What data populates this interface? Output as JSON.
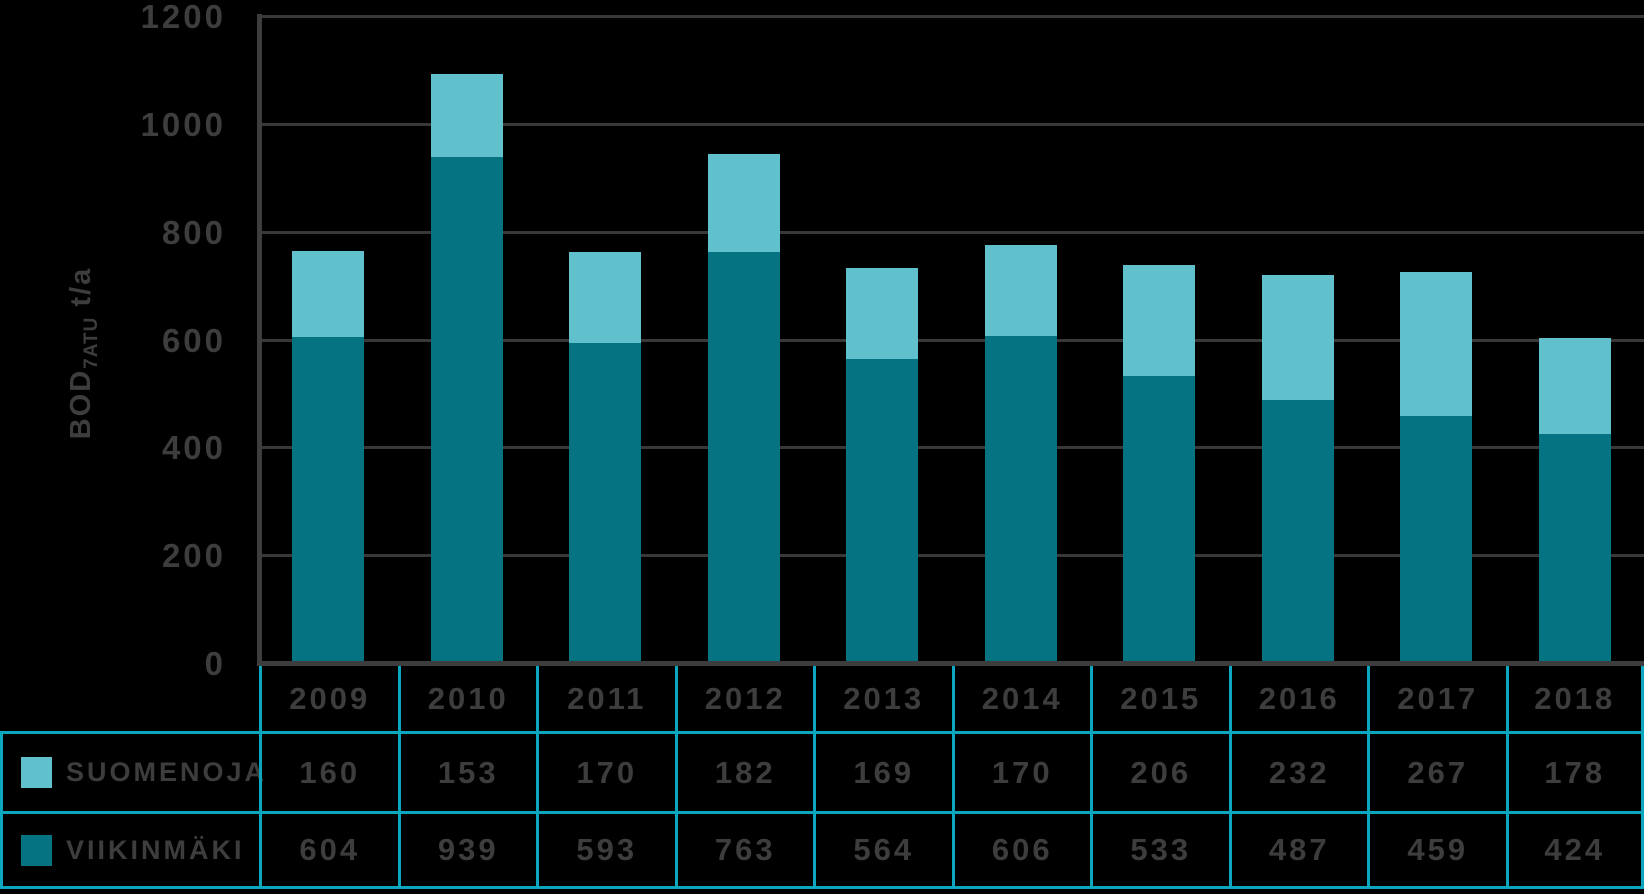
{
  "colors": {
    "background": "#000000",
    "suomenoja": "#60c1cc",
    "viikinmaki": "#057381",
    "table_border": "#0ba7be",
    "grid": "#383838",
    "axis": "#3d3d3d",
    "text": "#3d3d3d"
  },
  "y_axis": {
    "title_prefix": "BOD",
    "title_subscript": "7ATU",
    "title_suffix": " t/a",
    "tick_labels": [
      "1200",
      "1000",
      "800",
      "600",
      "400",
      "200",
      "0"
    ],
    "tick_values": [
      1200,
      1000,
      800,
      600,
      400,
      200,
      0
    ]
  },
  "chart_data": {
    "type": "bar",
    "stacked": true,
    "title": "",
    "xlabel": "",
    "ylabel": "BOD7ATU t/a",
    "ylim": [
      0,
      1200
    ],
    "grid": true,
    "legend_position": "table-rows-below-chart",
    "categories": [
      "2009",
      "2010",
      "2011",
      "2012",
      "2013",
      "2014",
      "2015",
      "2016",
      "2017",
      "2018"
    ],
    "series": [
      {
        "name": "SUOMENOJA",
        "color_key": "suomenoja",
        "stack_position": "top",
        "values": [
          160,
          153,
          170,
          182,
          169,
          170,
          206,
          232,
          267,
          178
        ]
      },
      {
        "name": "VIIKINMÄKI",
        "color_key": "viikinmaki",
        "stack_position": "bottom",
        "values": [
          604,
          939,
          593,
          763,
          564,
          606,
          533,
          487,
          459,
          424
        ]
      }
    ]
  }
}
